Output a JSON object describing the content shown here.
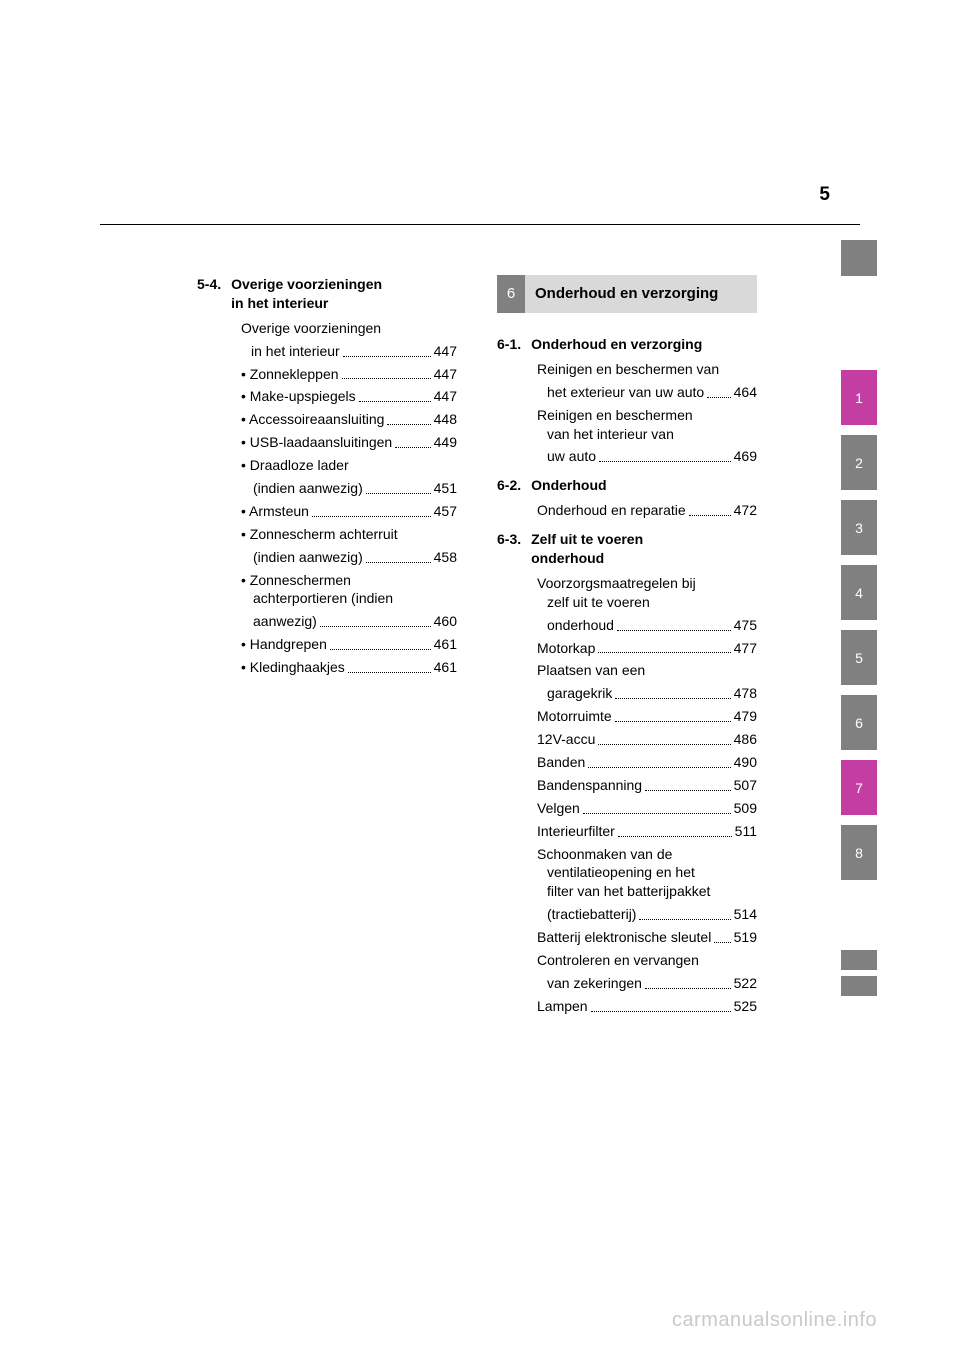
{
  "page_number": "5",
  "watermark": "carmanualsonline.info",
  "left_column": {
    "section_label": "5-4.",
    "section_title_line1": "Overige voorzieningen",
    "section_title_line2": "in het interieur",
    "intro_line1": "Overige voorzieningen",
    "intro_line2": "in het interieur",
    "intro_page": "447",
    "bullets": [
      {
        "text": "Zonnekleppen",
        "page": "447"
      },
      {
        "text": "Make-upspiegels",
        "page": "447"
      },
      {
        "text": "Accessoireaansluiting",
        "page": "448"
      },
      {
        "text": "USB-laadaansluitingen",
        "page": "449"
      },
      {
        "text_line1": "Draadloze lader",
        "text_line2": "(indien aanwezig)",
        "page": "451"
      },
      {
        "text": "Armsteun",
        "page": "457"
      },
      {
        "text_line1": "Zonnescherm achterruit",
        "text_line2": "(indien aanwezig)",
        "page": "458"
      },
      {
        "text_line1": "Zonneschermen",
        "text_line2": "achterportieren (indien",
        "text_line3": "aanwezig)",
        "page": "460"
      },
      {
        "text": "Handgrepen",
        "page": "461"
      },
      {
        "text": "Kledinghaakjes",
        "page": "461"
      }
    ]
  },
  "right_column": {
    "chapter_number": "6",
    "chapter_title": "Onderhoud en verzorging",
    "sections": [
      {
        "label": "6-1.",
        "title": "Onderhoud en verzorging",
        "entries": [
          {
            "lines": [
              "Reinigen en beschermen van",
              "het exterieur van uw auto"
            ],
            "page": "464"
          },
          {
            "lines": [
              "Reinigen en beschermen",
              "van het interieur van",
              "uw auto"
            ],
            "page": "469"
          }
        ]
      },
      {
        "label": "6-2.",
        "title": "Onderhoud",
        "entries": [
          {
            "lines": [
              "Onderhoud en reparatie"
            ],
            "page": "472"
          }
        ]
      },
      {
        "label": "6-3.",
        "title_line1": "Zelf uit te voeren",
        "title_line2": "onderhoud",
        "entries": [
          {
            "lines": [
              "Voorzorgsmaatregelen bij",
              "zelf uit te voeren",
              "onderhoud"
            ],
            "page": "475"
          },
          {
            "lines": [
              "Motorkap"
            ],
            "page": "477"
          },
          {
            "lines": [
              "Plaatsen van een",
              "garagekrik"
            ],
            "page": "478"
          },
          {
            "lines": [
              "Motorruimte"
            ],
            "page": "479"
          },
          {
            "lines": [
              "12V-accu"
            ],
            "page": "486"
          },
          {
            "lines": [
              "Banden"
            ],
            "page": "490"
          },
          {
            "lines": [
              "Bandenspanning"
            ],
            "page": "507"
          },
          {
            "lines": [
              "Velgen"
            ],
            "page": "509"
          },
          {
            "lines": [
              "Interieurfilter"
            ],
            "page": "511"
          },
          {
            "lines": [
              "Schoonmaken van de",
              "ventilatieopening en het",
              "filter van het batterijpakket",
              "(tractiebatterij)"
            ],
            "page": "514"
          },
          {
            "lines": [
              "Batterij elektronische sleutel"
            ],
            "page": "519"
          },
          {
            "lines": [
              "Controleren en vervangen",
              "van zekeringen"
            ],
            "page": "522"
          },
          {
            "lines": [
              "Lampen"
            ],
            "page": "525"
          }
        ]
      }
    ]
  },
  "side_tabs": [
    {
      "label": "1",
      "color": "#c43da3"
    },
    {
      "label": "2",
      "color": "#808080"
    },
    {
      "label": "3",
      "color": "#808080"
    },
    {
      "label": "4",
      "color": "#808080"
    },
    {
      "label": "5",
      "color": "#808080"
    },
    {
      "label": "6",
      "color": "#808080"
    },
    {
      "label": "7",
      "color": "#c43da3"
    },
    {
      "label": "8",
      "color": "#808080"
    }
  ],
  "chapter_bar_colors": {
    "num_bg": "#808080",
    "num_fg": "#ffffff",
    "title_bg": "#d9d9d9"
  }
}
